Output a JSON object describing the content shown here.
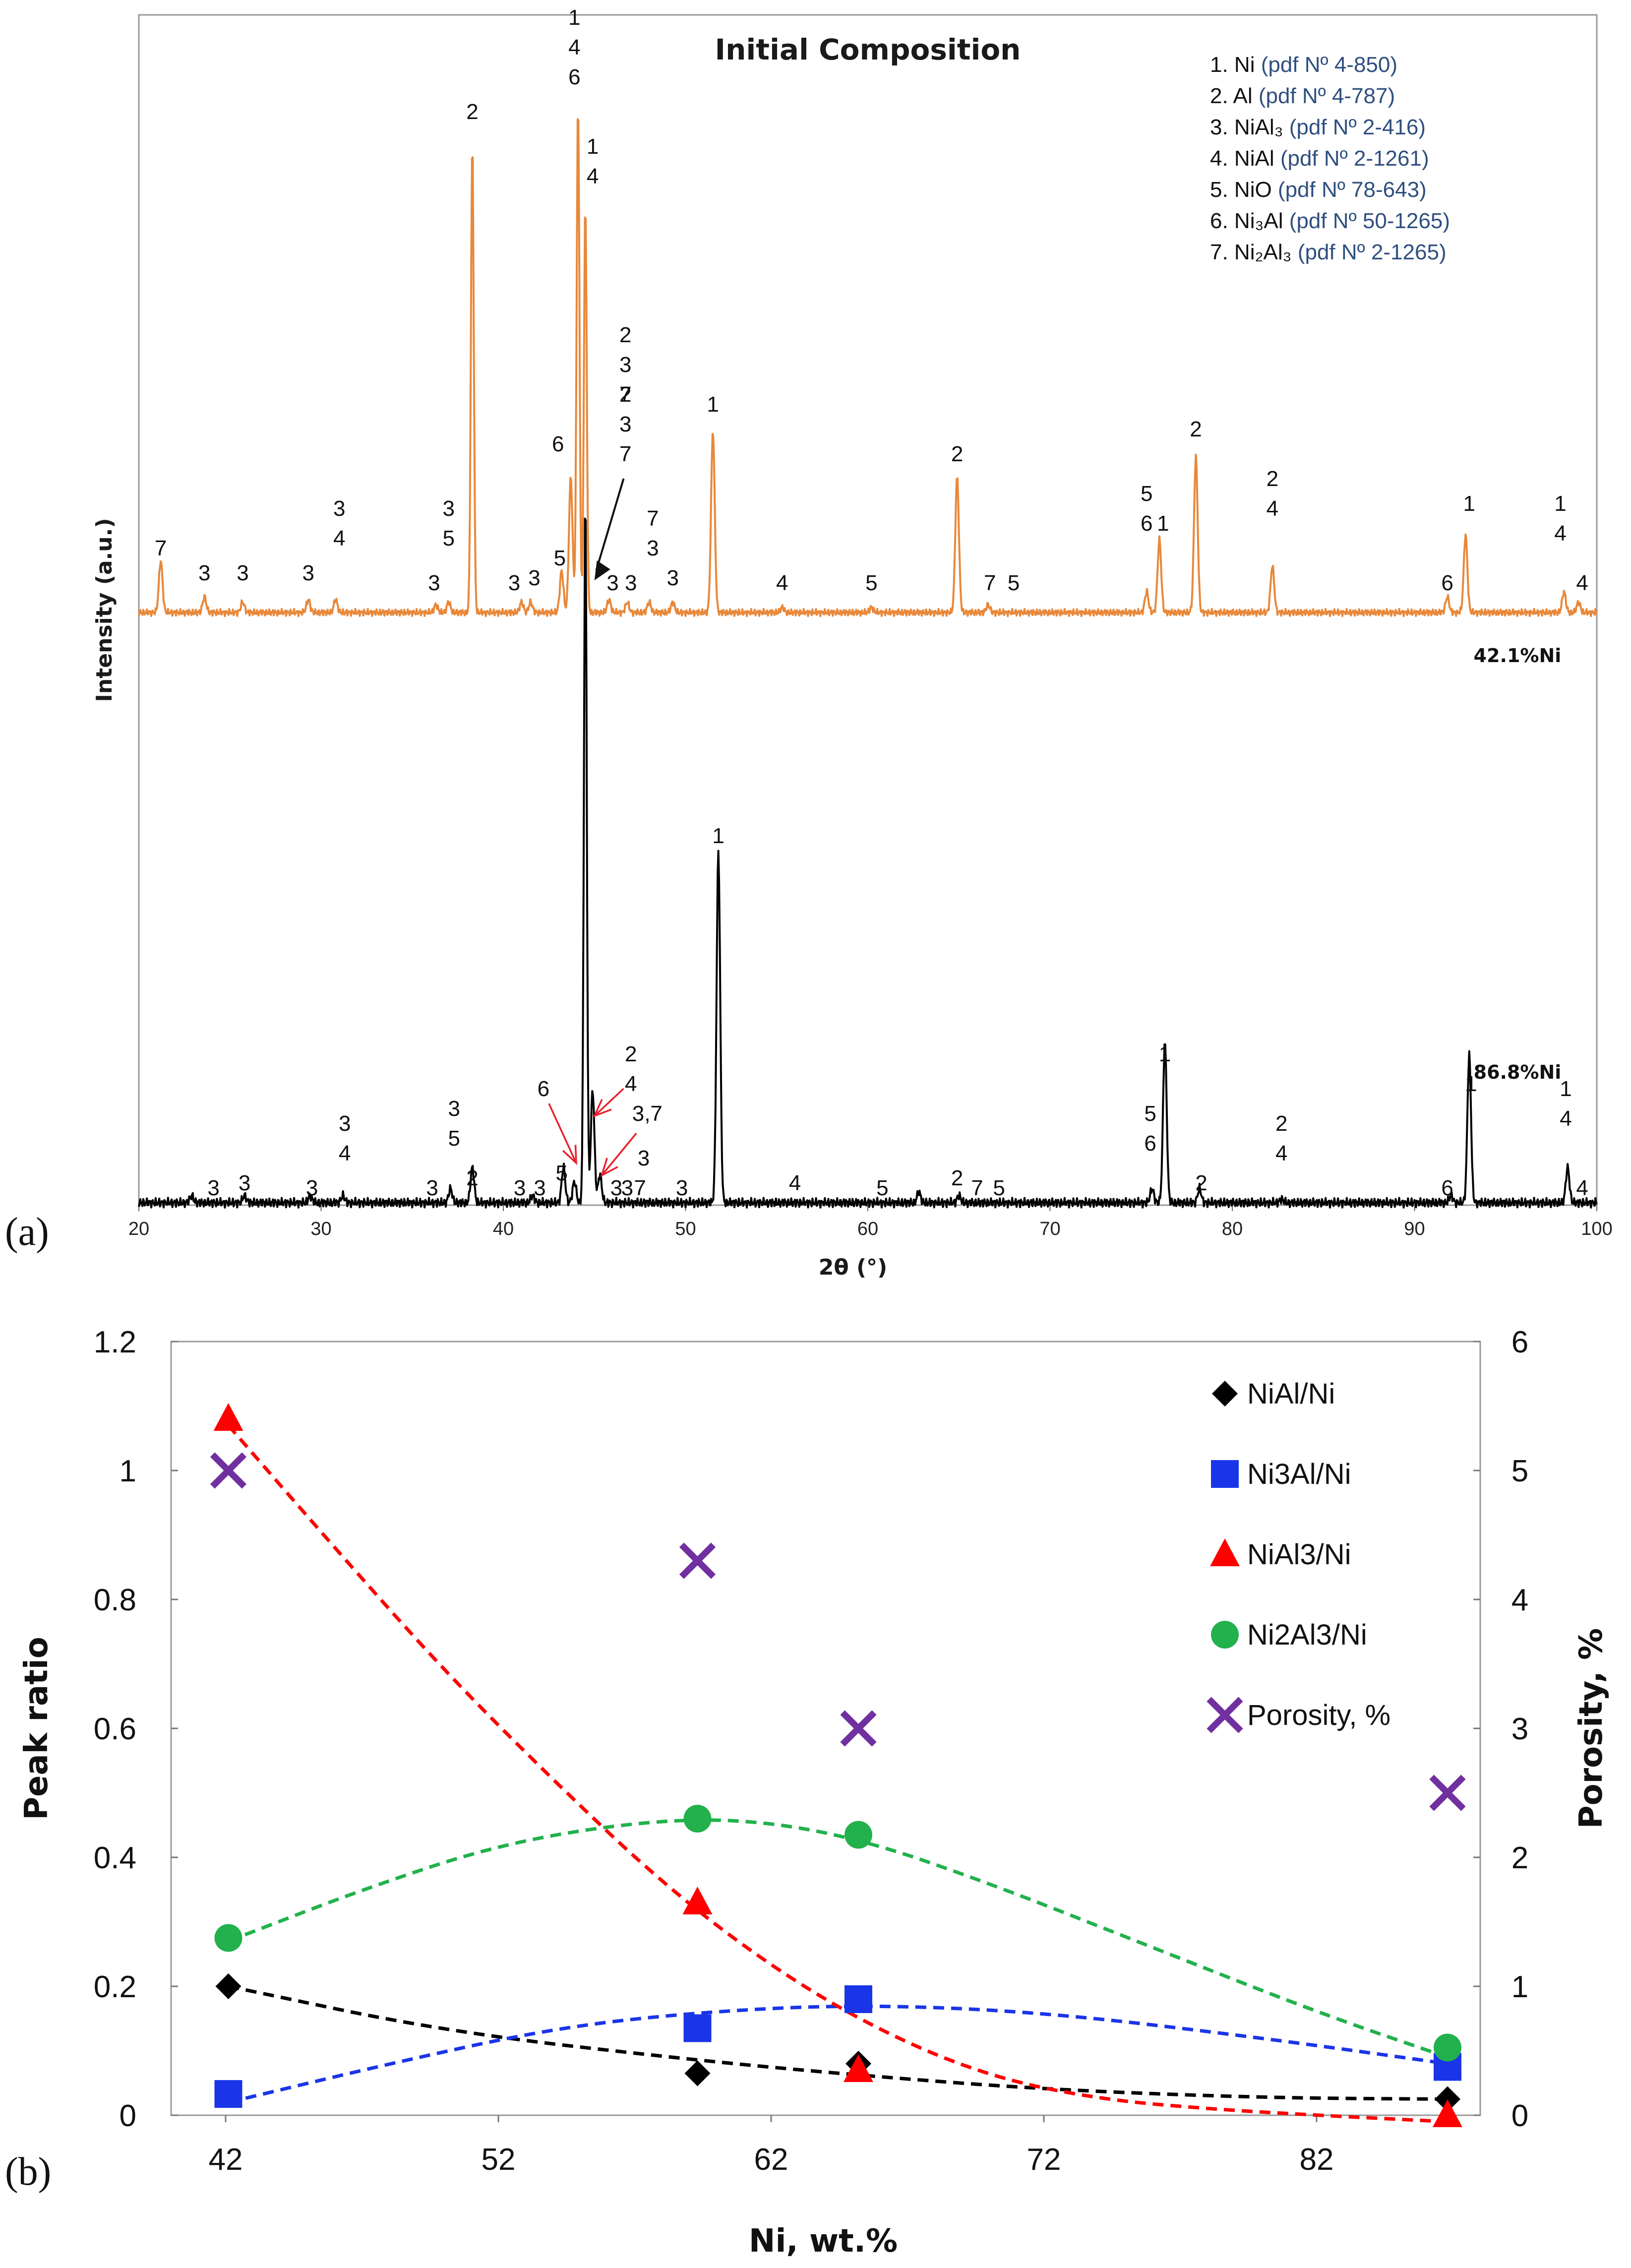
{
  "chart_data": [
    {
      "type": "line",
      "panel": "(a)",
      "title": "Initial Composition",
      "xlabel": "2θ (°)",
      "ylabel": "Intensity (a.u.)",
      "xlim": [
        20,
        100
      ],
      "xticks": [
        "20",
        "30",
        "40",
        "50",
        "60",
        "70",
        "80",
        "90",
        "100"
      ],
      "legend": [
        {
          "prefix": "1. Ni ",
          "pdf": "(pdf Nº 4-850)"
        },
        {
          "prefix": "2. Al ",
          "pdf": "(pdf Nº 4-787)"
        },
        {
          "prefix": "3. NiAl₃ ",
          "pdf": "(pdf Nº 2-416)"
        },
        {
          "prefix": "4. NiAl ",
          "pdf": "(pdf Nº 2-1261)"
        },
        {
          "prefix": "5. NiO ",
          "pdf": "(pdf Nº 78-643)"
        },
        {
          "prefix": "6. Ni₃Al ",
          "pdf": "(pdf Nº 50-1265)"
        },
        {
          "prefix": "7. Ni₂Al₃ ",
          "pdf": "(pdf Nº 2-1265)"
        }
      ],
      "series": [
        {
          "name": "42.1%Ni",
          "color": "#e8883a",
          "peaks": [
            {
              "x": 21.2,
              "h": 0.1
            },
            {
              "x": 23.6,
              "h": 0.03
            },
            {
              "x": 25.7,
              "h": 0.02
            },
            {
              "x": 29.3,
              "h": 0.025
            },
            {
              "x": 30.8,
              "h": 0.025
            },
            {
              "x": 36.3,
              "h": 0.015
            },
            {
              "x": 37.0,
              "h": 0.02
            },
            {
              "x": 38.3,
              "h": 0.9
            },
            {
              "x": 41.0,
              "h": 0.02
            },
            {
              "x": 41.5,
              "h": 0.02
            },
            {
              "x": 43.2,
              "h": 0.08
            },
            {
              "x": 43.7,
              "h": 0.26
            },
            {
              "x": 44.1,
              "h": 0.98
            },
            {
              "x": 44.5,
              "h": 0.78
            },
            {
              "x": 45.8,
              "h": 0.025
            },
            {
              "x": 46.8,
              "h": 0.02
            },
            {
              "x": 48.0,
              "h": 0.02
            },
            {
              "x": 49.3,
              "h": 0.02
            },
            {
              "x": 51.5,
              "h": 0.35
            },
            {
              "x": 55.3,
              "h": 0.01
            },
            {
              "x": 60.2,
              "h": 0.01
            },
            {
              "x": 64.9,
              "h": 0.26
            },
            {
              "x": 66.6,
              "h": 0.015
            },
            {
              "x": 75.3,
              "h": 0.04
            },
            {
              "x": 76.0,
              "h": 0.14
            },
            {
              "x": 78.0,
              "h": 0.3
            },
            {
              "x": 82.2,
              "h": 0.09
            },
            {
              "x": 91.8,
              "h": 0.03
            },
            {
              "x": 92.8,
              "h": 0.15
            },
            {
              "x": 98.2,
              "h": 0.04
            },
            {
              "x": 99.0,
              "h": 0.02
            }
          ],
          "peak_labels": [
            {
              "x": 21.2,
              "lines": [
                "7"
              ]
            },
            {
              "x": 23.6,
              "lines": [
                "3"
              ]
            },
            {
              "x": 25.7,
              "lines": [
                "3"
              ]
            },
            {
              "x": 29.3,
              "lines": [
                "3"
              ]
            },
            {
              "x": 31.0,
              "lines": [
                "3",
                "4"
              ]
            },
            {
              "x": 36.2,
              "lines": [
                "3"
              ]
            },
            {
              "x": 37.0,
              "lines": [
                "3",
                "5"
              ]
            },
            {
              "x": 38.3,
              "lines": [
                "2"
              ]
            },
            {
              "x": 40.6,
              "lines": [
                "3"
              ]
            },
            {
              "x": 41.7,
              "lines": [
                "3"
              ]
            },
            {
              "x": 43.1,
              "lines": [
                "5"
              ]
            },
            {
              "x": 43.0,
              "lines": [
                "6"
              ]
            },
            {
              "x": 43.9,
              "lines": [
                "1",
                "4",
                "6"
              ]
            },
            {
              "x": 44.9,
              "lines": [
                "1",
                "4"
              ]
            },
            {
              "x": 46.7,
              "lines": [
                "2",
                "3",
                "7"
              ]
            },
            {
              "x": 46.0,
              "lines": [
                "3"
              ]
            },
            {
              "x": 47.0,
              "lines": [
                "3"
              ]
            },
            {
              "x": 48.2,
              "lines": [
                "7",
                "3"
              ]
            },
            {
              "x": 49.3,
              "lines": [
                "3"
              ]
            },
            {
              "x": 51.5,
              "lines": [
                "1"
              ]
            },
            {
              "x": 55.3,
              "lines": [
                "4"
              ]
            },
            {
              "x": 60.2,
              "lines": [
                "5"
              ]
            },
            {
              "x": 64.9,
              "lines": [
                "2"
              ]
            },
            {
              "x": 66.7,
              "lines": [
                "7"
              ]
            },
            {
              "x": 68.0,
              "lines": [
                "5"
              ]
            },
            {
              "x": 75.3,
              "lines": [
                "5",
                "6"
              ]
            },
            {
              "x": 76.2,
              "lines": [
                "1"
              ]
            },
            {
              "x": 78.0,
              "lines": [
                "2"
              ]
            },
            {
              "x": 82.2,
              "lines": [
                "2",
                "4"
              ]
            },
            {
              "x": 91.8,
              "lines": [
                "6"
              ]
            },
            {
              "x": 93.0,
              "lines": [
                "1"
              ]
            },
            {
              "x": 98.0,
              "lines": [
                "1",
                "4"
              ]
            },
            {
              "x": 99.2,
              "lines": [
                "4"
              ]
            }
          ]
        },
        {
          "name": "86.8%Ni",
          "color": "#000000",
          "peaks": [
            {
              "x": 22.9,
              "h": 0.01
            },
            {
              "x": 25.8,
              "h": 0.01
            },
            {
              "x": 29.4,
              "h": 0.01
            },
            {
              "x": 31.2,
              "h": 0.01
            },
            {
              "x": 37.1,
              "h": 0.02
            },
            {
              "x": 38.3,
              "h": 0.05
            },
            {
              "x": 41.6,
              "h": 0.01
            },
            {
              "x": 43.3,
              "h": 0.05
            },
            {
              "x": 43.9,
              "h": 0.03
            },
            {
              "x": 44.5,
              "h": 1.0
            },
            {
              "x": 44.9,
              "h": 0.16
            },
            {
              "x": 45.3,
              "h": 0.04
            },
            {
              "x": 51.8,
              "h": 0.5
            },
            {
              "x": 62.8,
              "h": 0.015
            },
            {
              "x": 65.0,
              "h": 0.01
            },
            {
              "x": 75.6,
              "h": 0.02
            },
            {
              "x": 76.3,
              "h": 0.23
            },
            {
              "x": 78.2,
              "h": 0.02
            },
            {
              "x": 82.7,
              "h": 0.005
            },
            {
              "x": 92.0,
              "h": 0.01
            },
            {
              "x": 93.0,
              "h": 0.21
            },
            {
              "x": 98.4,
              "h": 0.05
            }
          ],
          "peak_labels": [
            {
              "x": 24.1,
              "lines": [
                "3"
              ]
            },
            {
              "x": 25.8,
              "lines": [
                "3"
              ]
            },
            {
              "x": 29.5,
              "lines": [
                "3"
              ]
            },
            {
              "x": 31.3,
              "lines": [
                "3",
                "4"
              ]
            },
            {
              "x": 36.1,
              "lines": [
                "3"
              ]
            },
            {
              "x": 37.3,
              "lines": [
                "3",
                "5"
              ]
            },
            {
              "x": 38.3,
              "lines": [
                "2"
              ]
            },
            {
              "x": 40.9,
              "lines": [
                "3"
              ]
            },
            {
              "x": 42.0,
              "lines": [
                "3"
              ]
            },
            {
              "x": 43.2,
              "lines": [
                "5"
              ]
            },
            {
              "x": 42.2,
              "lines": [
                "6"
              ]
            },
            {
              "x": 47.7,
              "lines": [
                "3"
              ]
            },
            {
              "x": 46.2,
              "lines": [
                "3"
              ]
            },
            {
              "x": 46.8,
              "lines": [
                "3"
              ]
            },
            {
              "x": 47.5,
              "lines": [
                "7"
              ]
            },
            {
              "x": 49.8,
              "lines": [
                "3"
              ]
            },
            {
              "x": 51.8,
              "lines": [
                "1"
              ]
            },
            {
              "x": 56.0,
              "lines": [
                "4"
              ]
            },
            {
              "x": 60.8,
              "lines": [
                "5"
              ]
            },
            {
              "x": 64.9,
              "lines": [
                "2"
              ]
            },
            {
              "x": 66.0,
              "lines": [
                "7"
              ]
            },
            {
              "x": 67.2,
              "lines": [
                "5"
              ]
            },
            {
              "x": 75.5,
              "lines": [
                "5",
                "6"
              ]
            },
            {
              "x": 76.3,
              "lines": [
                "1"
              ]
            },
            {
              "x": 78.3,
              "lines": [
                "2"
              ]
            },
            {
              "x": 82.7,
              "lines": [
                "2",
                "4"
              ]
            },
            {
              "x": 91.8,
              "lines": [
                "6"
              ]
            },
            {
              "x": 93.1,
              "lines": [
                "1"
              ]
            },
            {
              "x": 98.3,
              "lines": [
                "1",
                "4"
              ]
            },
            {
              "x": 99.2,
              "lines": [
                "4"
              ]
            }
          ],
          "arrow_labels": [
            {
              "text": "6",
              "x": 42.2
            },
            {
              "lines": [
                "2",
                "4"
              ],
              "x": 47.0
            },
            {
              "text": "3,7",
              "x": 47.9
            }
          ]
        }
      ],
      "arrow_label": [
        "2",
        "3",
        "7"
      ]
    },
    {
      "type": "scatter",
      "panel": "(b)",
      "xlabel": "Ni, wt.%",
      "ylabel": "Peak ratio",
      "y2label": "Porosity, %",
      "xlim": [
        40,
        88
      ],
      "ylim": [
        0,
        1.2
      ],
      "y2lim": [
        0,
        6
      ],
      "xticks": [
        "42",
        "52",
        "62",
        "72",
        "82"
      ],
      "yticks": [
        "0",
        "0.2",
        "0.4",
        "0.6",
        "0.8",
        "1",
        "1.2"
      ],
      "y2ticks": [
        "0",
        "1",
        "2",
        "3",
        "4",
        "5",
        "6"
      ],
      "series": [
        {
          "name": "NiAl/Ni",
          "marker": "diamond",
          "color": "#000000",
          "axis": "left",
          "x": [
            42.1,
            59.3,
            65.2,
            86.8
          ],
          "y": [
            0.2,
            0.065,
            0.08,
            0.025
          ],
          "trend": [
            [
              42.1,
              0.2
            ],
            [
              50,
              0.13
            ],
            [
              59.3,
              0.085
            ],
            [
              65.2,
              0.062
            ],
            [
              72,
              0.04
            ],
            [
              80,
              0.027
            ],
            [
              86.8,
              0.025
            ]
          ]
        },
        {
          "name": "Ni3Al/Ni",
          "marker": "square",
          "color": "#1a35e8",
          "axis": "left",
          "x": [
            42.1,
            59.3,
            65.2,
            86.8
          ],
          "y": [
            0.033,
            0.135,
            0.18,
            0.075
          ],
          "trend": [
            [
              42.1,
              0.02
            ],
            [
              48,
              0.08
            ],
            [
              54,
              0.135
            ],
            [
              59.3,
              0.16
            ],
            [
              65.2,
              0.172
            ],
            [
              72,
              0.16
            ],
            [
              80,
              0.12
            ],
            [
              86.8,
              0.08
            ]
          ]
        },
        {
          "name": "NiAl3/Ni",
          "marker": "triangle",
          "color": "#ff0000",
          "axis": "left",
          "x": [
            42.1,
            59.3,
            65.2,
            86.8
          ],
          "y": [
            1.08,
            0.33,
            0.07,
            0.0
          ],
          "trend": [
            [
              42.1,
              1.07
            ],
            [
              46,
              0.88
            ],
            [
              50,
              0.69
            ],
            [
              54,
              0.52
            ],
            [
              58,
              0.36
            ],
            [
              62,
              0.23
            ],
            [
              66,
              0.13
            ],
            [
              70,
              0.06
            ],
            [
              74,
              0.025
            ],
            [
              78,
              0.01
            ],
            [
              82,
              0.0
            ],
            [
              86.8,
              -0.01
            ]
          ]
        },
        {
          "name": "Ni2Al3/Ni",
          "marker": "circle",
          "color": "#22b14c",
          "axis": "left",
          "x": [
            42.1,
            59.3,
            65.2,
            86.8
          ],
          "y": [
            0.275,
            0.46,
            0.435,
            0.105
          ],
          "trend": [
            [
              42.1,
              0.27
            ],
            [
              47,
              0.35
            ],
            [
              52,
              0.42
            ],
            [
              57,
              0.455
            ],
            [
              61,
              0.46
            ],
            [
              65.2,
              0.43
            ],
            [
              70,
              0.36
            ],
            [
              76,
              0.26
            ],
            [
              82,
              0.16
            ],
            [
              86.8,
              0.09
            ]
          ]
        },
        {
          "name": "Porosity, %",
          "marker": "x",
          "color": "#7030a0",
          "axis": "right",
          "x": [
            42.1,
            59.3,
            65.2,
            86.8
          ],
          "y": [
            5.0,
            4.3,
            3.0,
            2.5
          ]
        }
      ]
    }
  ]
}
